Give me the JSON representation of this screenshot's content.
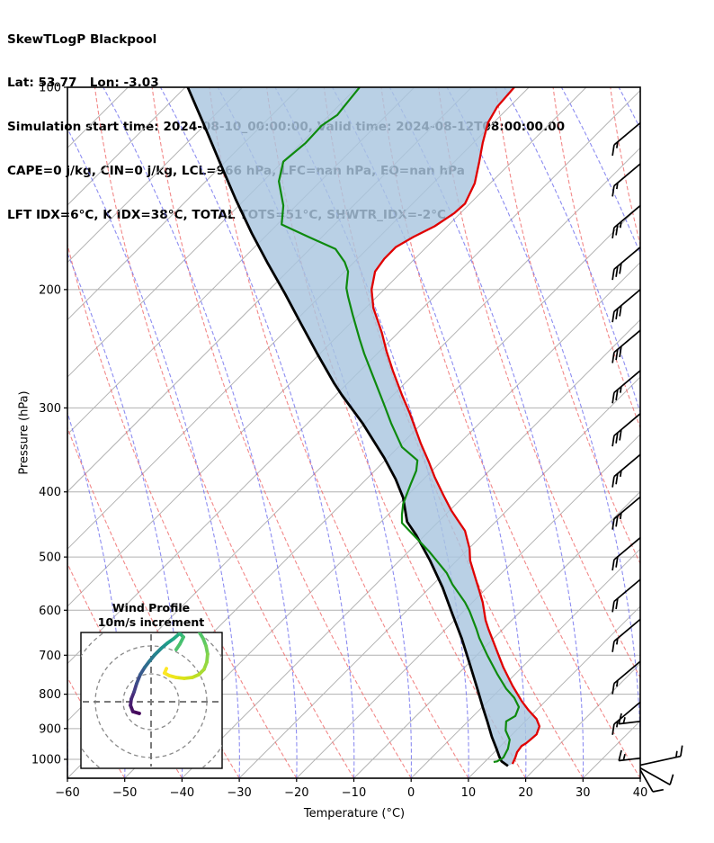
{
  "header": {
    "title": "SkewTLogP Blackpool",
    "location_line": "Lat: 53.77   Lon: -3.03",
    "time_line": "Simulation start time: 2024-08-10_00:00:00, Valid time: 2024-08-12T08:00:00.00",
    "indices_line1": "CAPE=0 j/kg, CIN=0 j/kg, LCL=966 hPa, LFC=nan hPa, EQ=nan hPa",
    "indices_line2": "LFT IDX=6°C, K IDX=38°C, TOTAL TOTS=51°C, SHWTR_IDX=-2°C"
  },
  "axes": {
    "x": {
      "label": "Temperature (°C)",
      "tick_values": [
        -60,
        -50,
        -40,
        -30,
        -20,
        -10,
        0,
        10,
        20,
        30,
        40
      ],
      "tick_labels": [
        "−60",
        "−50",
        "−40",
        "−30",
        "−20",
        "−10",
        "0",
        "10",
        "20",
        "30",
        "40"
      ]
    },
    "y": {
      "label": "Pressure (hPa)",
      "tick_values": [
        100,
        200,
        300,
        400,
        500,
        600,
        700,
        800,
        900,
        1000
      ],
      "tick_labels": [
        "100",
        "200",
        "300",
        "400",
        "500",
        "600",
        "700",
        "800",
        "900",
        "1000"
      ]
    }
  },
  "chart_data": {
    "type": "skewt_logp",
    "note": "t values are skew-T plot x-positions expressed in bottom-axis °C units (45° skew); p in hPa",
    "x_range_deg": [
      -60,
      40
    ],
    "p_range_hpa": [
      100,
      1052
    ],
    "skew_deg_45": true,
    "colors": {
      "temperature": "#e00000",
      "dewpoint": "#0e8a0e",
      "parcel": "#000000",
      "shading": "#a9c6df",
      "isotherms": "#b3b3b3",
      "dry_adiabats": "#ef6a6a",
      "moist_adiabats": "#7070ee",
      "grid": "#b0b0b0"
    },
    "series": [
      {
        "name": "temperature",
        "points": [
          [
            100,
            18.0
          ],
          [
            107,
            15.0
          ],
          [
            113,
            13.4
          ],
          [
            121,
            12.5
          ],
          [
            129,
            11.9
          ],
          [
            139,
            11.1
          ],
          [
            149,
            9.4
          ],
          [
            154,
            7.5
          ],
          [
            161,
            4.1
          ],
          [
            167,
            0.4
          ],
          [
            173,
            -2.7
          ],
          [
            180,
            -4.7
          ],
          [
            188,
            -6.3
          ],
          [
            200,
            -6.9
          ],
          [
            213,
            -6.6
          ],
          [
            232,
            -5.1
          ],
          [
            247,
            -4.3
          ],
          [
            264,
            -3.2
          ],
          [
            287,
            -1.6
          ],
          [
            306,
            -0.2
          ],
          [
            316,
            0.4
          ],
          [
            339,
            1.7
          ],
          [
            361,
            3.1
          ],
          [
            380,
            4.1
          ],
          [
            404,
            5.6
          ],
          [
            426,
            7.0
          ],
          [
            439,
            8.0
          ],
          [
            457,
            9.4
          ],
          [
            486,
            10.2
          ],
          [
            506,
            10.3
          ],
          [
            533,
            11.1
          ],
          [
            561,
            11.9
          ],
          [
            584,
            12.5
          ],
          [
            621,
            13.0
          ],
          [
            640,
            13.5
          ],
          [
            687,
            14.9
          ],
          [
            730,
            16.1
          ],
          [
            777,
            17.7
          ],
          [
            819,
            19.3
          ],
          [
            845,
            20.5
          ],
          [
            871,
            21.9
          ],
          [
            893,
            22.4
          ],
          [
            918,
            21.9
          ],
          [
            935,
            20.8
          ],
          [
            946,
            20.1
          ],
          [
            955,
            19.3
          ],
          [
            976,
            18.5
          ],
          [
            994,
            18.2
          ],
          [
            1016,
            17.7
          ]
        ]
      },
      {
        "name": "dewpoint",
        "points": [
          [
            100,
            -9.0
          ],
          [
            105,
            -11.0
          ],
          [
            110,
            -12.9
          ],
          [
            114,
            -15.6
          ],
          [
            121,
            -18.4
          ],
          [
            129,
            -22.3
          ],
          [
            138,
            -23.1
          ],
          [
            150,
            -22.3
          ],
          [
            160,
            -22.6
          ],
          [
            167,
            -17.9
          ],
          [
            174,
            -13.2
          ],
          [
            182,
            -11.6
          ],
          [
            188,
            -11.0
          ],
          [
            199,
            -11.3
          ],
          [
            205,
            -11.0
          ],
          [
            218,
            -10.2
          ],
          [
            237,
            -9.0
          ],
          [
            249,
            -8.2
          ],
          [
            270,
            -6.6
          ],
          [
            297,
            -4.7
          ],
          [
            316,
            -3.5
          ],
          [
            343,
            -1.6
          ],
          [
            359,
            1.1
          ],
          [
            372,
            0.9
          ],
          [
            388,
            0.0
          ],
          [
            404,
            -0.8
          ],
          [
            417,
            -1.4
          ],
          [
            432,
            -1.6
          ],
          [
            445,
            -1.6
          ],
          [
            490,
            3.1
          ],
          [
            528,
            6.2
          ],
          [
            549,
            7.2
          ],
          [
            584,
            9.4
          ],
          [
            602,
            10.2
          ],
          [
            640,
            11.4
          ],
          [
            660,
            11.9
          ],
          [
            700,
            13.3
          ],
          [
            746,
            15.0
          ],
          [
            785,
            16.6
          ],
          [
            810,
            18.0
          ],
          [
            836,
            18.8
          ],
          [
            862,
            18.2
          ],
          [
            878,
            16.6
          ],
          [
            906,
            16.5
          ],
          [
            935,
            17.2
          ],
          [
            964,
            16.9
          ],
          [
            994,
            16.1
          ],
          [
            1007,
            15.0
          ],
          [
            1009,
            14.4
          ]
        ]
      },
      {
        "name": "parcel",
        "points": [
          [
            100,
            -39.0
          ],
          [
            114,
            -36.1
          ],
          [
            130,
            -33.3
          ],
          [
            147,
            -30.6
          ],
          [
            165,
            -27.8
          ],
          [
            183,
            -25.0
          ],
          [
            203,
            -22.0
          ],
          [
            225,
            -19.2
          ],
          [
            249,
            -16.4
          ],
          [
            276,
            -13.4
          ],
          [
            287,
            -12.1
          ],
          [
            316,
            -8.5
          ],
          [
            356,
            -4.7
          ],
          [
            383,
            -2.7
          ],
          [
            408,
            -1.4
          ],
          [
            443,
            -0.7
          ],
          [
            464,
            0.9
          ],
          [
            506,
            3.3
          ],
          [
            555,
            5.5
          ],
          [
            608,
            7.2
          ],
          [
            660,
            8.8
          ],
          [
            720,
            10.2
          ],
          [
            777,
            11.4
          ],
          [
            836,
            12.5
          ],
          [
            878,
            13.3
          ],
          [
            926,
            14.1
          ],
          [
            964,
            14.9
          ],
          [
            991,
            15.4
          ],
          [
            1007,
            15.8
          ],
          [
            1023,
            16.9
          ]
        ]
      }
    ],
    "shading_between": [
      "parcel",
      "temperature"
    ],
    "background": {
      "isotherms_deg_step": 10,
      "isotherms_deg_range": [
        -170,
        40
      ],
      "dry_adiabat_anchor_range": [
        -60,
        230
      ],
      "moist_adiabat_anchor_range": [
        -60,
        230
      ],
      "horizontal_gridlines_hpa": [
        100,
        200,
        300,
        400,
        500,
        600,
        700,
        800,
        900,
        1000
      ]
    },
    "wind_barbs": {
      "column": [
        {
          "p": 113,
          "full": 1,
          "half": 1
        },
        {
          "p": 130,
          "full": 1,
          "half": 1
        },
        {
          "p": 150,
          "full": 2,
          "half": 1
        },
        {
          "p": 173,
          "full": 3,
          "half": 0
        },
        {
          "p": 200,
          "full": 3,
          "half": 0
        },
        {
          "p": 230,
          "full": 3,
          "half": 0
        },
        {
          "p": 264,
          "full": 2,
          "half": 1
        },
        {
          "p": 306,
          "full": 3,
          "half": 0
        },
        {
          "p": 352,
          "full": 2,
          "half": 1
        },
        {
          "p": 407,
          "full": 2,
          "half": 1
        },
        {
          "p": 468,
          "full": 2,
          "half": 0
        },
        {
          "p": 540,
          "full": 2,
          "half": 0
        },
        {
          "p": 619,
          "full": 1,
          "half": 1
        },
        {
          "p": 715,
          "full": 1,
          "half": 1
        },
        {
          "p": 822,
          "full": 1,
          "half": 1
        }
      ],
      "surface_cluster": [
        {
          "p": 878,
          "full": 1,
          "half": 1,
          "staff": [
            -1.0,
            0.12
          ],
          "feather": [
            0.25,
            -1.0
          ],
          "len": 24
        },
        {
          "p": 996,
          "full": 1,
          "half": 1,
          "staff": [
            -1.0,
            0.12
          ],
          "feather": [
            0.25,
            -1.0
          ],
          "len": 24
        },
        {
          "p": 1020,
          "full": 1,
          "half": 1,
          "staff": [
            1.0,
            -0.22
          ],
          "feather": [
            0.15,
            -1.0
          ],
          "len": 46
        },
        {
          "p": 1030,
          "full": 1,
          "half": 0,
          "staff": [
            0.8,
            0.45
          ],
          "feather": [
            0.3,
            -1.0
          ],
          "len": 38
        },
        {
          "p": 1037,
          "full": 1,
          "half": 0,
          "staff": [
            0.55,
            0.95
          ],
          "feather": [
            1.0,
            -0.2
          ],
          "len": 28
        }
      ]
    },
    "hodograph": {
      "title_line1": "Wind Profile",
      "title_line2": "10m/s increment",
      "ring_increment_ms": 10,
      "rings_ms": [
        10,
        20,
        30
      ],
      "branches": [
        {
          "name": "low-to-mid-level",
          "colors": [
            "#46085c",
            "#471365",
            "#481d6f",
            "#472a7a",
            "#433e85",
            "#3d4e8a",
            "#375a8c",
            "#2f6c8e",
            "#2a788e",
            "#25848e",
            "#21918c",
            "#1fa188",
            "#24aa83",
            "#31b57b",
            "#44bf70",
            "#4cc26c"
          ],
          "uv_ms": [
            [
              -4.2,
              -4.2
            ],
            [
              -6.5,
              -3.5
            ],
            [
              -7.4,
              -1.3
            ],
            [
              -7.1,
              1.0
            ],
            [
              -6.1,
              3.5
            ],
            [
              -5.2,
              6.5
            ],
            [
              -3.9,
              9.7
            ],
            [
              -2.3,
              12.3
            ],
            [
              -0.6,
              14.5
            ],
            [
              1.3,
              16.8
            ],
            [
              3.5,
              19.0
            ],
            [
              5.8,
              21.0
            ],
            [
              8.1,
              22.6
            ],
            [
              10.3,
              24.5
            ],
            [
              11.6,
              23.2
            ],
            [
              10.3,
              20.6
            ],
            [
              9.0,
              18.7
            ]
          ]
        },
        {
          "name": "upper-level",
          "colors": [
            "#52c569",
            "#5ec962",
            "#70cf57",
            "#83d44c",
            "#95d840",
            "#a8db34",
            "#bade28",
            "#cce11e",
            "#dde318",
            "#eee51c",
            "#f6e620",
            "#fde725"
          ],
          "uv_ms": [
            [
              17.4,
              24.8
            ],
            [
              18.7,
              22.6
            ],
            [
              19.7,
              20.0
            ],
            [
              20.3,
              17.1
            ],
            [
              20.0,
              14.2
            ],
            [
              19.0,
              11.6
            ],
            [
              17.1,
              9.7
            ],
            [
              14.8,
              8.7
            ],
            [
              11.9,
              8.4
            ],
            [
              9.0,
              8.7
            ],
            [
              6.5,
              9.4
            ],
            [
              4.8,
              10.3
            ],
            [
              5.5,
              11.9
            ]
          ]
        }
      ]
    }
  }
}
